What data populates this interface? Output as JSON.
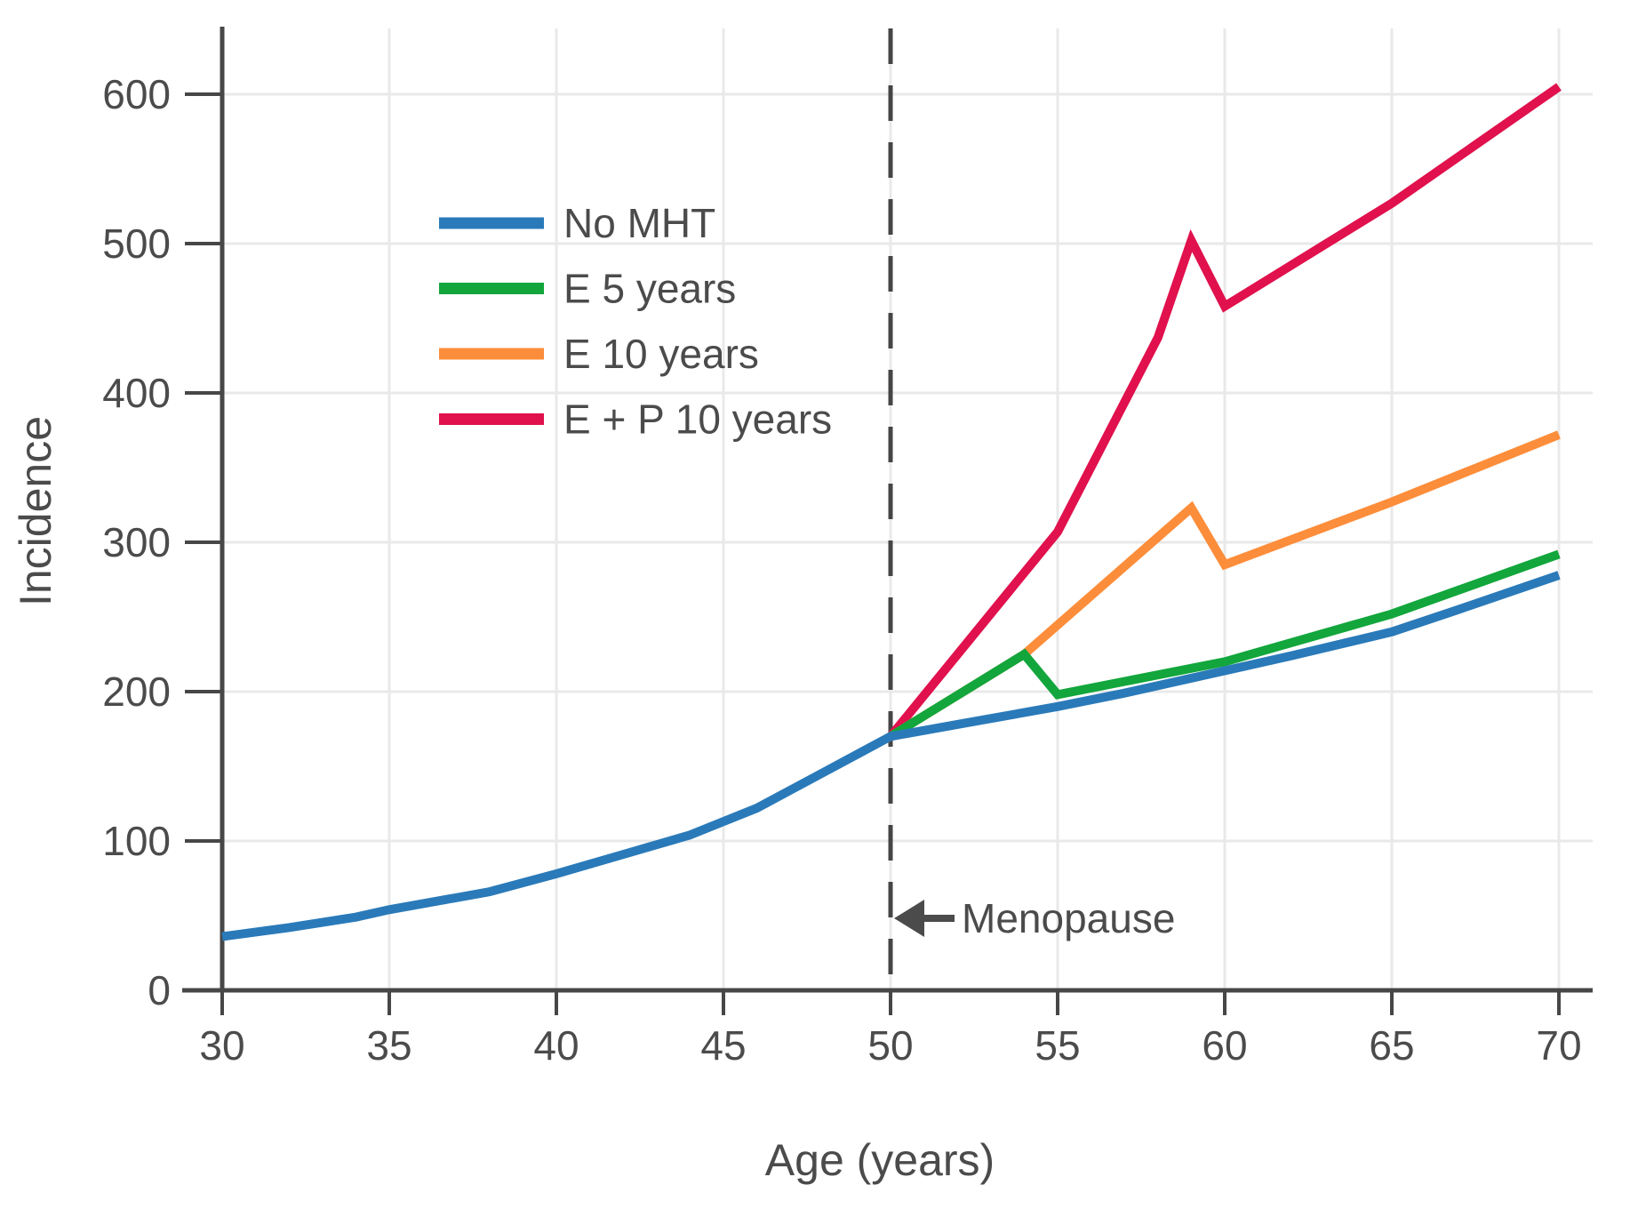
{
  "chart_data": {
    "type": "line",
    "title": "",
    "xlabel": "Age (years)",
    "ylabel": "Incidence",
    "x_ticks": [
      30,
      35,
      40,
      45,
      50,
      55,
      60,
      65,
      70
    ],
    "y_ticks": [
      0,
      100,
      200,
      300,
      400,
      500,
      600
    ],
    "xlim": [
      30,
      71
    ],
    "ylim": [
      0,
      644
    ],
    "grid": true,
    "legend_position": "upper-left-inside",
    "vline": {
      "x": 50,
      "style": "dashed"
    },
    "annotation": {
      "text": "Menopause",
      "arrow": "left",
      "points_to_age": 50,
      "y": 48
    },
    "series": [
      {
        "name": "No MHT",
        "color": "#2A7AB9",
        "points": [
          [
            30,
            36
          ],
          [
            32,
            42
          ],
          [
            34,
            49
          ],
          [
            35,
            54
          ],
          [
            36,
            58
          ],
          [
            38,
            66
          ],
          [
            40,
            78
          ],
          [
            42,
            91
          ],
          [
            44,
            104
          ],
          [
            45,
            113
          ],
          [
            46,
            122
          ],
          [
            47,
            134
          ],
          [
            48,
            146
          ],
          [
            49,
            158
          ],
          [
            50,
            170
          ],
          [
            52,
            178
          ],
          [
            55,
            190
          ],
          [
            57,
            199
          ],
          [
            60,
            214
          ],
          [
            62,
            224
          ],
          [
            65,
            240
          ],
          [
            67,
            255
          ],
          [
            70,
            278
          ]
        ]
      },
      {
        "name": "E 5 years",
        "color": "#12A63C",
        "points": [
          [
            50,
            170
          ],
          [
            54,
            225
          ],
          [
            55,
            198
          ],
          [
            60,
            220
          ],
          [
            65,
            252
          ],
          [
            70,
            292
          ]
        ]
      },
      {
        "name": "E 10 years",
        "color": "#FC8D3A",
        "points": [
          [
            50,
            170
          ],
          [
            54,
            225
          ],
          [
            59,
            323
          ],
          [
            60,
            285
          ],
          [
            65,
            327
          ],
          [
            70,
            372
          ]
        ]
      },
      {
        "name": "E + P 10 years",
        "color": "#E0114D",
        "points": [
          [
            50,
            170
          ],
          [
            55,
            307
          ],
          [
            58,
            437
          ],
          [
            59,
            502
          ],
          [
            60,
            458
          ],
          [
            65,
            527
          ],
          [
            70,
            605
          ]
        ]
      }
    ],
    "style": {
      "background": "#ffffff",
      "grid_color": "#e9e9e9",
      "axis_color": "#474747",
      "text_color": "#4b4b4b",
      "dash_color": "#454545",
      "line_width": 10
    }
  }
}
